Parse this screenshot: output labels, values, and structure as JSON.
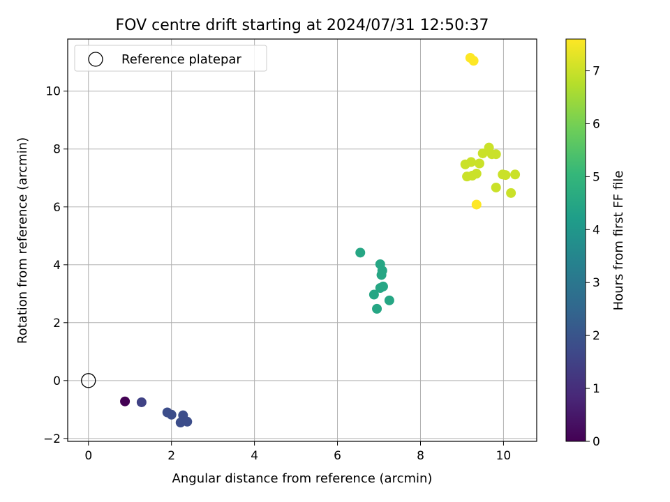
{
  "chart_data": {
    "type": "scatter",
    "title": "FOV centre drift starting at 2024/07/31 12:50:37",
    "xlabel": "Angular distance from reference (arcmin)",
    "ylabel": "Rotation from reference (arcmin)",
    "xlim": [
      -0.5,
      10.8
    ],
    "ylim": [
      -2.1,
      11.8
    ],
    "xticks": [
      0,
      2,
      4,
      6,
      8,
      10
    ],
    "yticks": [
      -2,
      0,
      2,
      4,
      6,
      8,
      10
    ],
    "grid": true,
    "legend": {
      "placement": "top-left",
      "entries": [
        {
          "label": "Reference platepar",
          "marker": "open-circle",
          "color": "#000000"
        }
      ]
    },
    "reference_point": {
      "x": 0,
      "y": 0
    },
    "colorbar": {
      "label": "Hours from first FF file",
      "colormap": "viridis",
      "range": [
        0,
        7.6
      ],
      "ticks": [
        0,
        1,
        2,
        3,
        4,
        5,
        6,
        7
      ]
    },
    "points": [
      {
        "x": 0.88,
        "y": -0.72,
        "hours": 0.0
      },
      {
        "x": 1.28,
        "y": -0.75,
        "hours": 1.5
      },
      {
        "x": 1.9,
        "y": -1.1,
        "hours": 1.8
      },
      {
        "x": 2.0,
        "y": -1.18,
        "hours": 1.8
      },
      {
        "x": 2.28,
        "y": -1.2,
        "hours": 1.8
      },
      {
        "x": 2.22,
        "y": -1.45,
        "hours": 1.8
      },
      {
        "x": 2.38,
        "y": -1.42,
        "hours": 1.8
      },
      {
        "x": 6.55,
        "y": 4.42,
        "hours": 4.5
      },
      {
        "x": 7.03,
        "y": 4.02,
        "hours": 4.5
      },
      {
        "x": 7.08,
        "y": 3.8,
        "hours": 4.5
      },
      {
        "x": 7.06,
        "y": 3.65,
        "hours": 4.5
      },
      {
        "x": 7.1,
        "y": 3.25,
        "hours": 4.5
      },
      {
        "x": 7.03,
        "y": 3.2,
        "hours": 4.5
      },
      {
        "x": 6.88,
        "y": 2.97,
        "hours": 4.5
      },
      {
        "x": 7.25,
        "y": 2.77,
        "hours": 4.5
      },
      {
        "x": 6.95,
        "y": 2.48,
        "hours": 4.5
      },
      {
        "x": 9.2,
        "y": 11.15,
        "hours": 7.6
      },
      {
        "x": 9.28,
        "y": 11.05,
        "hours": 7.6
      },
      {
        "x": 9.35,
        "y": 6.08,
        "hours": 7.6
      },
      {
        "x": 9.65,
        "y": 8.05,
        "hours": 7.0
      },
      {
        "x": 9.5,
        "y": 7.85,
        "hours": 7.0
      },
      {
        "x": 9.72,
        "y": 7.82,
        "hours": 7.0
      },
      {
        "x": 9.82,
        "y": 7.82,
        "hours": 7.0
      },
      {
        "x": 9.42,
        "y": 7.5,
        "hours": 7.0
      },
      {
        "x": 9.22,
        "y": 7.55,
        "hours": 7.0
      },
      {
        "x": 9.08,
        "y": 7.47,
        "hours": 7.0
      },
      {
        "x": 9.35,
        "y": 7.15,
        "hours": 7.0
      },
      {
        "x": 9.25,
        "y": 7.08,
        "hours": 7.0
      },
      {
        "x": 9.12,
        "y": 7.05,
        "hours": 7.0
      },
      {
        "x": 9.98,
        "y": 7.12,
        "hours": 7.0
      },
      {
        "x": 10.05,
        "y": 7.1,
        "hours": 7.0
      },
      {
        "x": 10.28,
        "y": 7.12,
        "hours": 7.0
      },
      {
        "x": 9.82,
        "y": 6.67,
        "hours": 7.0
      },
      {
        "x": 10.18,
        "y": 6.48,
        "hours": 7.0
      }
    ]
  }
}
